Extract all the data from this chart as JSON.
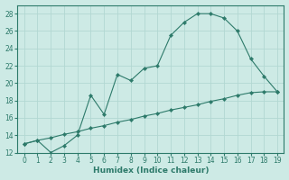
{
  "line1_x": [
    0,
    1,
    2,
    3,
    4,
    5,
    6,
    7,
    8,
    9,
    10,
    11,
    12,
    13,
    14,
    15,
    16,
    17,
    18,
    19
  ],
  "line1_y": [
    13.0,
    13.4,
    13.7,
    14.1,
    14.4,
    14.8,
    15.1,
    15.5,
    15.8,
    16.2,
    16.5,
    16.9,
    17.2,
    17.5,
    17.9,
    18.2,
    18.6,
    18.9,
    19.0,
    19.0
  ],
  "line2_x": [
    0,
    1,
    2,
    3,
    4,
    5,
    6,
    7,
    8,
    9,
    10,
    11,
    12,
    13,
    14,
    15,
    16,
    17,
    18,
    19
  ],
  "line2_y": [
    13.0,
    13.4,
    12.0,
    12.8,
    14.0,
    18.6,
    16.4,
    21.0,
    20.3,
    21.7,
    22.0,
    25.5,
    27.0,
    28.0,
    28.0,
    27.5,
    26.0,
    22.8,
    20.8,
    19.0
  ],
  "line_color": "#2d7a6a",
  "marker": "D",
  "marker_size": 2.2,
  "bg_color": "#cdeae5",
  "grid_color": "#b2d8d2",
  "xlabel": "Humidex (Indice chaleur)",
  "ylim": [
    12,
    29
  ],
  "xlim": [
    -0.5,
    19.5
  ],
  "yticks": [
    12,
    14,
    16,
    18,
    20,
    22,
    24,
    26,
    28
  ],
  "xticks": [
    0,
    1,
    2,
    3,
    4,
    5,
    6,
    7,
    8,
    9,
    10,
    11,
    12,
    13,
    14,
    15,
    16,
    17,
    18,
    19
  ],
  "xlabel_fontsize": 6.5,
  "tick_fontsize": 5.5
}
